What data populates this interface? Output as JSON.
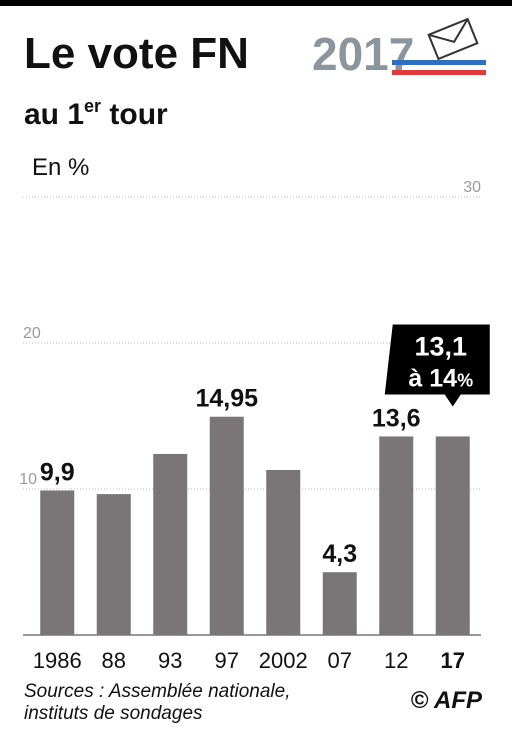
{
  "chart_data": {
    "type": "bar",
    "title": "Le vote FN",
    "subtitle": {
      "text": "au 1",
      "sup": "er",
      "rest": " tour"
    },
    "logo": "2017",
    "y_label": "En %",
    "categories": [
      "1986",
      "88",
      "93",
      "97",
      "2002",
      "07",
      "12",
      "17"
    ],
    "values": [
      9.9,
      9.65,
      12.4,
      14.95,
      11.3,
      4.3,
      13.6,
      13.6
    ],
    "value_labels": [
      "9,9",
      null,
      null,
      "14,95",
      null,
      "4,3",
      "13,6",
      null
    ],
    "annotation": {
      "line1": "13,1",
      "line2": "à 14",
      "unit": "%"
    },
    "color": "#7a7577",
    "ylim": [
      0,
      30
    ],
    "yticks": [
      10,
      20,
      30
    ],
    "grid": true,
    "source": [
      "Sources : Assemblée nationale,",
      "instituts de sondages"
    ],
    "credit": "© AFP"
  }
}
